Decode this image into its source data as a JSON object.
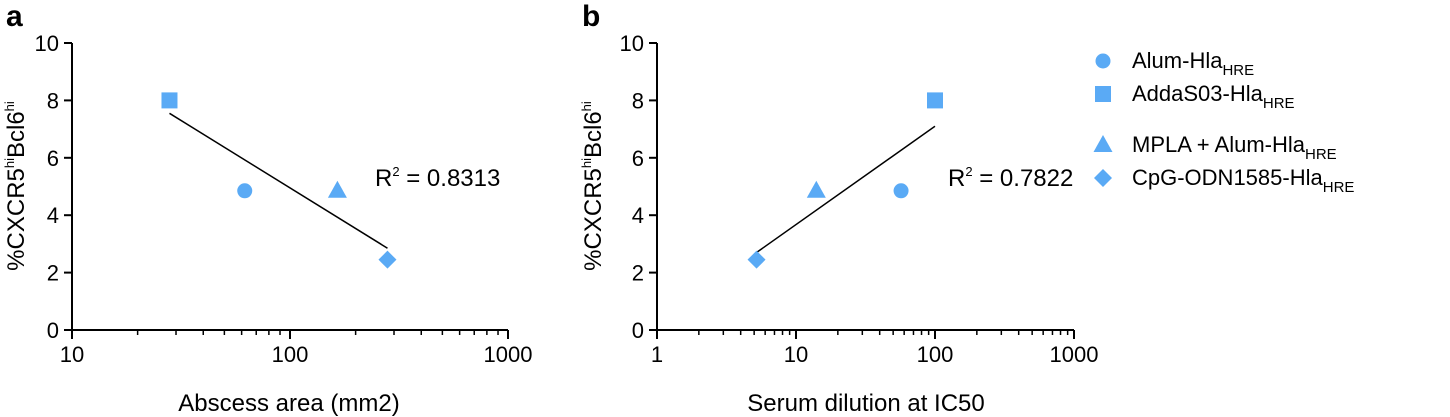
{
  "colors": {
    "marker": "#5AAAF5",
    "axis": "#000000",
    "line": "#000000"
  },
  "legend": {
    "items": [
      {
        "marker": "circle",
        "label": "Alum-Hla",
        "subscript": "HRE"
      },
      {
        "marker": "square",
        "label": "AddaS03-Hla",
        "subscript": "HRE"
      },
      {
        "marker": "triangle",
        "label": "MPLA + Alum-Hla",
        "subscript": "HRE"
      },
      {
        "marker": "diamond",
        "label": "CpG-ODN1585-Hla",
        "subscript": "HRE"
      }
    ]
  },
  "chart_data": [
    {
      "panel": "a",
      "type": "scatter",
      "xlabel": "Abscess area (mm2)",
      "ylabel": {
        "parts": [
          "%CXCR5",
          "hi",
          "Bcl6",
          "hi"
        ]
      },
      "xscale": "log",
      "xlim": [
        10,
        1000
      ],
      "ylim": [
        0,
        10
      ],
      "xticks": [
        10,
        100,
        1000
      ],
      "xtick_labels": [
        "10",
        "100",
        "1000"
      ],
      "yticks": [
        0,
        2,
        4,
        6,
        8,
        10
      ],
      "ytick_labels": [
        "0",
        "2",
        "4",
        "6",
        "8",
        "10"
      ],
      "points": [
        {
          "series": "Alum-HlaHRE",
          "marker": "circle",
          "x": 62,
          "y": 4.85
        },
        {
          "series": "AddaS03-HlaHRE",
          "marker": "square",
          "x": 28,
          "y": 8.0
        },
        {
          "series": "MPLA + Alum-HlaHRE",
          "marker": "triangle",
          "x": 165,
          "y": 4.85
        },
        {
          "series": "CpG-ODN1585-HlaHRE",
          "marker": "diamond",
          "x": 280,
          "y": 2.45
        }
      ],
      "fit_line": {
        "x": [
          28,
          280
        ],
        "y": [
          7.55,
          2.85
        ]
      },
      "annotation": {
        "r2_label": "R",
        "r2_sup": "2",
        "r2_value": " = 0.8313"
      }
    },
    {
      "panel": "b",
      "type": "scatter",
      "xlabel": "Serum dilution at IC50",
      "ylabel": {
        "parts": [
          "%CXCR5",
          "hi",
          "Bcl6",
          "hi"
        ]
      },
      "xscale": "log",
      "xlim": [
        1,
        1000
      ],
      "ylim": [
        0,
        10
      ],
      "xticks": [
        1,
        10,
        100,
        1000
      ],
      "xtick_labels": [
        "1",
        "10",
        "100",
        "1000"
      ],
      "yticks": [
        0,
        2,
        4,
        6,
        8,
        10
      ],
      "ytick_labels": [
        "0",
        "2",
        "4",
        "6",
        "8",
        "10"
      ],
      "points": [
        {
          "series": "Alum-HlaHRE",
          "marker": "circle",
          "x": 57,
          "y": 4.85
        },
        {
          "series": "AddaS03-HlaHRE",
          "marker": "square",
          "x": 100,
          "y": 8.0
        },
        {
          "series": "MPLA + Alum-HlaHRE",
          "marker": "triangle",
          "x": 14,
          "y": 4.85
        },
        {
          "series": "CpG-ODN1585-HlaHRE",
          "marker": "diamond",
          "x": 5.2,
          "y": 2.45
        }
      ],
      "fit_line": {
        "x": [
          5.2,
          100
        ],
        "y": [
          2.7,
          7.1
        ]
      },
      "annotation": {
        "r2_label": "R",
        "r2_sup": "2",
        "r2_value": " = 0.7822"
      }
    }
  ]
}
